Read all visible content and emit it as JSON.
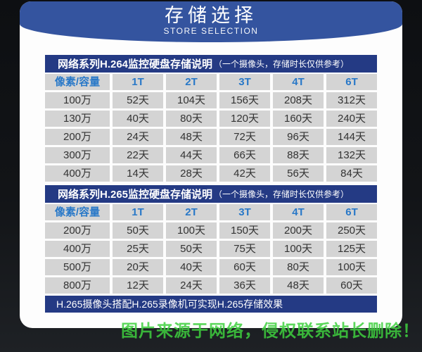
{
  "page": {
    "title": "存储选择",
    "subtitle": "STORE SELECTION",
    "watermark": "图片来源于网络，侵权联系站长删除！"
  },
  "colors": {
    "banner_blue": "#34549f",
    "table_bar_navy": "#243a84",
    "column_header_blue": "#2878c8",
    "cell_gray": "#d4d4d4",
    "watermark_green": "#3ed03e",
    "background_dark": "#121417"
  },
  "tables": [
    {
      "title": "网络系列H.264监控硬盘存储说明",
      "note": "（一个摄像头，存储时长仅供参考）",
      "columns": [
        "像素/容量",
        "1T",
        "2T",
        "3T",
        "4T",
        "6T"
      ],
      "rows": [
        [
          "100万",
          "52天",
          "104天",
          "156天",
          "208天",
          "312天"
        ],
        [
          "130万",
          "40天",
          "80天",
          "120天",
          "160天",
          "240天"
        ],
        [
          "200万",
          "24天",
          "48天",
          "72天",
          "96天",
          "144天"
        ],
        [
          "300万",
          "22天",
          "44天",
          "66天",
          "88天",
          "132天"
        ],
        [
          "400万",
          "14天",
          "28天",
          "42天",
          "56天",
          "84天"
        ]
      ]
    },
    {
      "title": "网络系列H.265监控硬盘存储说明",
      "note": "（一个摄像头，存储时长仅供参考）",
      "columns": [
        "像素/容量",
        "1T",
        "2T",
        "3T",
        "4T",
        "6T"
      ],
      "rows": [
        [
          "200万",
          "50天",
          "100天",
          "150天",
          "200天",
          "250天"
        ],
        [
          "400万",
          "25天",
          "50天",
          "75天",
          "100天",
          "125天"
        ],
        [
          "500万",
          "20天",
          "40天",
          "60天",
          "80天",
          "100天"
        ],
        [
          "800万",
          "12天",
          "24天",
          "36天",
          "48天",
          "60天"
        ]
      ],
      "footer": "H.265摄像头搭配H.265录像机可实现H.265存储效果"
    }
  ]
}
